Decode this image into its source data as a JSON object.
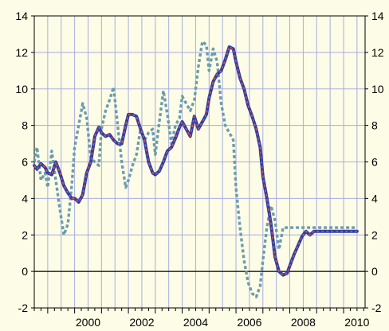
{
  "chart_data": {
    "type": "line",
    "title": "",
    "xlabel": "",
    "ylabel": "",
    "xlim": [
      1998.5,
      2010.8
    ],
    "ylim": [
      -2,
      14
    ],
    "y_ticks": [
      -2,
      0,
      2,
      4,
      6,
      8,
      10,
      12,
      14
    ],
    "y_tick_labels_left": [
      "-2",
      "0",
      "2",
      "4",
      "6",
      "8",
      "10",
      "12",
      "14"
    ],
    "y_tick_labels_right": [
      "-2",
      "0",
      "2",
      "4",
      "6",
      "8",
      "10",
      "12",
      "14"
    ],
    "x_tick_labels": [
      "2000",
      "2002",
      "2004",
      "2006",
      "2008",
      "2010"
    ],
    "x_tick_label_years": [
      2000,
      2002,
      2004,
      2006,
      2008,
      2010
    ],
    "grid": true,
    "legend": "none",
    "colors": {
      "background": "#fdfce6",
      "grid": "#a8ade0",
      "solid_series": "#2b3faa",
      "overlay_series": "#d9543a",
      "dotted_series": "#6b9cae"
    },
    "series": [
      {
        "style": "solid-thick",
        "x": [
          1998.5,
          1998.6,
          1998.75,
          1998.9,
          1999.0,
          1999.15,
          1999.3,
          1999.45,
          1999.6,
          1999.75,
          1999.9,
          2000.0,
          2000.15,
          2000.3,
          2000.45,
          2000.6,
          2000.75,
          2000.9,
          2001.0,
          2001.15,
          2001.3,
          2001.45,
          2001.6,
          2001.75,
          2001.9,
          2002.0,
          2002.15,
          2002.3,
          2002.45,
          2002.6,
          2002.75,
          2002.9,
          2003.0,
          2003.15,
          2003.3,
          2003.45,
          2003.6,
          2003.75,
          2003.9,
          2004.0,
          2004.15,
          2004.3,
          2004.45,
          2004.6,
          2004.75,
          2004.9,
          2005.0,
          2005.15,
          2005.3,
          2005.45,
          2005.6,
          2005.75,
          2005.9,
          2006.0,
          2006.15,
          2006.3,
          2006.45,
          2006.6,
          2006.75,
          2006.9,
          2007.0,
          2007.15,
          2007.3,
          2007.45,
          2007.6,
          2007.75,
          2007.9,
          2008.0,
          2008.15,
          2008.3,
          2008.45,
          2008.6,
          2008.75,
          2008.9,
          2009.0,
          2009.15,
          2009.3,
          2009.45,
          2009.6,
          2009.75,
          2009.9,
          2010.0,
          2010.15,
          2010.3,
          2010.5
        ],
        "values": [
          5.8,
          5.6,
          5.9,
          5.7,
          5.4,
          5.3,
          6.0,
          5.4,
          4.7,
          4.3,
          4.0,
          4.0,
          3.8,
          4.2,
          5.4,
          6.0,
          7.4,
          7.9,
          7.6,
          7.4,
          7.5,
          7.2,
          7.0,
          7.0,
          8.0,
          8.6,
          8.6,
          8.5,
          7.8,
          7.2,
          6.0,
          5.4,
          5.3,
          5.5,
          6.0,
          6.6,
          6.8,
          7.3,
          7.9,
          8.2,
          7.8,
          7.4,
          8.5,
          7.8,
          8.2,
          8.6,
          9.5,
          10.4,
          10.8,
          11.0,
          11.6,
          12.3,
          12.2,
          11.5,
          10.6,
          10.0,
          9.1,
          8.5,
          7.8,
          6.8,
          5.2,
          4.0,
          2.6,
          0.8,
          0.0,
          -0.2,
          -0.1,
          0.3,
          0.9,
          1.4,
          1.9,
          2.2,
          2.0,
          2.2,
          2.2,
          2.2,
          2.2,
          2.2,
          2.2,
          2.2,
          2.2,
          2.2,
          2.2,
          2.2,
          2.2
        ]
      },
      {
        "style": "dotted",
        "x": [
          1998.5,
          1998.6,
          1998.75,
          1998.9,
          1999.0,
          1999.15,
          1999.3,
          1999.45,
          1999.6,
          1999.75,
          1999.9,
          2000.0,
          2000.15,
          2000.3,
          2000.45,
          2000.6,
          2000.75,
          2000.9,
          2001.0,
          2001.15,
          2001.3,
          2001.45,
          2001.6,
          2001.75,
          2001.9,
          2002.0,
          2002.15,
          2002.3,
          2002.45,
          2002.6,
          2002.75,
          2002.9,
          2003.0,
          2003.15,
          2003.3,
          2003.45,
          2003.6,
          2003.75,
          2003.9,
          2004.0,
          2004.15,
          2004.3,
          2004.45,
          2004.6,
          2004.75,
          2004.9,
          2005.0,
          2005.15,
          2005.3,
          2005.45,
          2005.6,
          2005.75,
          2005.9,
          2006.0,
          2006.15,
          2006.3,
          2006.45,
          2006.6,
          2006.75,
          2006.9,
          2007.0,
          2007.15,
          2007.3,
          2007.45,
          2007.6,
          2007.75,
          2007.9,
          2008.0,
          2008.15,
          2008.3,
          2008.45,
          2008.6,
          2008.75,
          2008.9,
          2009.0,
          2009.15,
          2009.3,
          2009.45,
          2009.6,
          2009.75,
          2009.9,
          2010.0,
          2010.15,
          2010.3,
          2010.5
        ],
        "values": [
          6.0,
          6.8,
          5.0,
          5.4,
          4.6,
          6.6,
          5.0,
          3.4,
          2.0,
          2.6,
          4.8,
          6.8,
          8.0,
          9.2,
          8.4,
          6.2,
          6.0,
          5.8,
          7.8,
          8.8,
          9.4,
          10.1,
          8.0,
          6.0,
          4.6,
          5.0,
          5.8,
          6.4,
          7.8,
          7.2,
          7.6,
          7.8,
          6.4,
          8.2,
          9.9,
          8.6,
          7.0,
          8.0,
          8.4,
          9.6,
          9.2,
          8.8,
          9.4,
          11.2,
          12.6,
          12.4,
          11.0,
          12.2,
          11.5,
          9.2,
          8.0,
          7.6,
          7.2,
          4.6,
          2.4,
          0.6,
          -0.6,
          -1.2,
          -1.4,
          -0.8,
          0.6,
          2.4,
          3.6,
          2.8,
          1.2,
          2.4,
          2.4,
          2.4,
          2.4,
          2.4,
          2.4,
          2.4,
          2.4,
          2.4,
          2.4,
          2.4,
          2.4,
          2.4,
          2.4,
          2.4,
          2.4,
          2.4,
          2.4,
          2.4,
          2.4
        ]
      }
    ]
  }
}
